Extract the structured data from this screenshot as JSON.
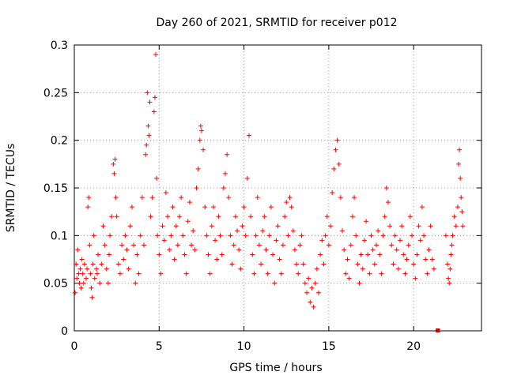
{
  "chart_data": {
    "type": "scatter",
    "title": "Day 260 of 2021, SRMTID for receiver p012",
    "xlabel": "GPS time / hours",
    "ylabel": "SRMTID / TECUs",
    "xlim": [
      0,
      24
    ],
    "ylim": [
      0,
      0.3
    ],
    "xticks": [
      "0",
      "5",
      "10",
      "15",
      "20"
    ],
    "xtick_values": [
      0,
      5,
      10,
      15,
      20
    ],
    "yticks": [
      "0",
      "0.05",
      "0.1",
      "0.15",
      "0.2",
      "0.25",
      "0.3"
    ],
    "ytick_values": [
      0,
      0.05,
      0.1,
      0.15,
      0.2,
      0.25,
      0.3
    ],
    "grid": true,
    "marker": "+",
    "series_color": "#ff0000",
    "gap_marker": {
      "x_start": 21.3,
      "x_end": 21.55,
      "y": 0.0,
      "color": "#cc0000"
    },
    "series": [
      {
        "name": "SRMTID",
        "points": [
          [
            0.05,
            0.04
          ],
          [
            0.1,
            0.07
          ],
          [
            0.15,
            0.055
          ],
          [
            0.2,
            0.085
          ],
          [
            0.25,
            0.06
          ],
          [
            0.3,
            0.05
          ],
          [
            0.35,
            0.065
          ],
          [
            0.4,
            0.045
          ],
          [
            0.45,
            0.075
          ],
          [
            0.5,
            0.06
          ],
          [
            0.55,
            0.05
          ],
          [
            0.6,
            0.07
          ],
          [
            0.7,
            0.055
          ],
          [
            0.75,
            0.065
          ],
          [
            0.8,
            0.13
          ],
          [
            0.85,
            0.14
          ],
          [
            0.9,
            0.09
          ],
          [
            0.95,
            0.06
          ],
          [
            1.0,
            0.045
          ],
          [
            1.05,
            0.035
          ],
          [
            1.1,
            0.07
          ],
          [
            1.15,
            0.1
          ],
          [
            1.2,
            0.055
          ],
          [
            1.3,
            0.065
          ],
          [
            1.35,
            0.06
          ],
          [
            1.4,
            0.08
          ],
          [
            1.5,
            0.05
          ],
          [
            1.6,
            0.07
          ],
          [
            1.7,
            0.11
          ],
          [
            1.8,
            0.09
          ],
          [
            1.9,
            0.065
          ],
          [
            2.0,
            0.05
          ],
          [
            2.05,
            0.08
          ],
          [
            2.1,
            0.1
          ],
          [
            2.2,
            0.12
          ],
          [
            2.3,
            0.175
          ],
          [
            2.35,
            0.165
          ],
          [
            2.4,
            0.18
          ],
          [
            2.45,
            0.14
          ],
          [
            2.5,
            0.12
          ],
          [
            2.6,
            0.07
          ],
          [
            2.7,
            0.06
          ],
          [
            2.8,
            0.09
          ],
          [
            2.9,
            0.075
          ],
          [
            3.0,
            0.1
          ],
          [
            3.1,
            0.085
          ],
          [
            3.2,
            0.065
          ],
          [
            3.3,
            0.11
          ],
          [
            3.4,
            0.13
          ],
          [
            3.5,
            0.09
          ],
          [
            3.6,
            0.05
          ],
          [
            3.7,
            0.08
          ],
          [
            3.8,
            0.06
          ],
          [
            3.9,
            0.1
          ],
          [
            4.0,
            0.14
          ],
          [
            4.1,
            0.09
          ],
          [
            4.2,
            0.185
          ],
          [
            4.25,
            0.195
          ],
          [
            4.3,
            0.25
          ],
          [
            4.35,
            0.215
          ],
          [
            4.4,
            0.205
          ],
          [
            4.45,
            0.24
          ],
          [
            4.5,
            0.12
          ],
          [
            4.6,
            0.14
          ],
          [
            4.7,
            0.23
          ],
          [
            4.75,
            0.245
          ],
          [
            4.8,
            0.29
          ],
          [
            4.85,
            0.16
          ],
          [
            4.9,
            0.1
          ],
          [
            5.0,
            0.08
          ],
          [
            5.1,
            0.06
          ],
          [
            5.2,
            0.11
          ],
          [
            5.3,
            0.095
          ],
          [
            5.4,
            0.145
          ],
          [
            5.5,
            0.12
          ],
          [
            5.6,
            0.085
          ],
          [
            5.7,
            0.1
          ],
          [
            5.8,
            0.13
          ],
          [
            5.9,
            0.075
          ],
          [
            6.0,
            0.11
          ],
          [
            6.1,
            0.09
          ],
          [
            6.2,
            0.12
          ],
          [
            6.3,
            0.14
          ],
          [
            6.4,
            0.1
          ],
          [
            6.5,
            0.08
          ],
          [
            6.6,
            0.06
          ],
          [
            6.7,
            0.115
          ],
          [
            6.8,
            0.135
          ],
          [
            6.9,
            0.09
          ],
          [
            7.0,
            0.105
          ],
          [
            7.1,
            0.085
          ],
          [
            7.2,
            0.15
          ],
          [
            7.3,
            0.17
          ],
          [
            7.4,
            0.2
          ],
          [
            7.45,
            0.215
          ],
          [
            7.5,
            0.21
          ],
          [
            7.6,
            0.19
          ],
          [
            7.7,
            0.13
          ],
          [
            7.8,
            0.1
          ],
          [
            7.9,
            0.08
          ],
          [
            8.0,
            0.06
          ],
          [
            8.1,
            0.11
          ],
          [
            8.2,
            0.13
          ],
          [
            8.3,
            0.095
          ],
          [
            8.4,
            0.075
          ],
          [
            8.5,
            0.12
          ],
          [
            8.6,
            0.1
          ],
          [
            8.7,
            0.08
          ],
          [
            8.8,
            0.15
          ],
          [
            8.9,
            0.165
          ],
          [
            9.0,
            0.185
          ],
          [
            9.1,
            0.14
          ],
          [
            9.2,
            0.1
          ],
          [
            9.3,
            0.07
          ],
          [
            9.4,
            0.09
          ],
          [
            9.5,
            0.12
          ],
          [
            9.6,
            0.105
          ],
          [
            9.7,
            0.085
          ],
          [
            9.8,
            0.065
          ],
          [
            9.9,
            0.11
          ],
          [
            10.0,
            0.13
          ],
          [
            10.1,
            0.1
          ],
          [
            10.2,
            0.16
          ],
          [
            10.3,
            0.205
          ],
          [
            10.4,
            0.12
          ],
          [
            10.5,
            0.08
          ],
          [
            10.6,
            0.06
          ],
          [
            10.7,
            0.1
          ],
          [
            10.8,
            0.14
          ],
          [
            10.9,
            0.09
          ],
          [
            11.0,
            0.07
          ],
          [
            11.1,
            0.105
          ],
          [
            11.2,
            0.12
          ],
          [
            11.3,
            0.085
          ],
          [
            11.4,
            0.06
          ],
          [
            11.5,
            0.1
          ],
          [
            11.6,
            0.13
          ],
          [
            11.7,
            0.08
          ],
          [
            11.8,
            0.05
          ],
          [
            11.9,
            0.095
          ],
          [
            12.0,
            0.11
          ],
          [
            12.1,
            0.075
          ],
          [
            12.2,
            0.06
          ],
          [
            12.3,
            0.09
          ],
          [
            12.4,
            0.12
          ],
          [
            12.5,
            0.135
          ],
          [
            12.6,
            0.1
          ],
          [
            12.7,
            0.14
          ],
          [
            12.8,
            0.13
          ],
          [
            12.9,
            0.105
          ],
          [
            13.0,
            0.085
          ],
          [
            13.1,
            0.07
          ],
          [
            13.2,
            0.06
          ],
          [
            13.3,
            0.09
          ],
          [
            13.4,
            0.1
          ],
          [
            13.5,
            0.07
          ],
          [
            13.6,
            0.05
          ],
          [
            13.7,
            0.04
          ],
          [
            13.8,
            0.055
          ],
          [
            13.9,
            0.03
          ],
          [
            14.0,
            0.045
          ],
          [
            14.1,
            0.025
          ],
          [
            14.2,
            0.05
          ],
          [
            14.3,
            0.065
          ],
          [
            14.4,
            0.04
          ],
          [
            14.5,
            0.08
          ],
          [
            14.6,
            0.095
          ],
          [
            14.7,
            0.07
          ],
          [
            14.8,
            0.1
          ],
          [
            14.9,
            0.12
          ],
          [
            15.0,
            0.09
          ],
          [
            15.1,
            0.11
          ],
          [
            15.2,
            0.145
          ],
          [
            15.3,
            0.17
          ],
          [
            15.4,
            0.19
          ],
          [
            15.5,
            0.2
          ],
          [
            15.6,
            0.175
          ],
          [
            15.7,
            0.14
          ],
          [
            15.8,
            0.105
          ],
          [
            15.9,
            0.085
          ],
          [
            16.0,
            0.06
          ],
          [
            16.1,
            0.075
          ],
          [
            16.2,
            0.055
          ],
          [
            16.3,
            0.09
          ],
          [
            16.4,
            0.12
          ],
          [
            16.5,
            0.14
          ],
          [
            16.6,
            0.1
          ],
          [
            16.7,
            0.07
          ],
          [
            16.8,
            0.05
          ],
          [
            16.9,
            0.08
          ],
          [
            17.0,
            0.065
          ],
          [
            17.1,
            0.095
          ],
          [
            17.2,
            0.115
          ],
          [
            17.3,
            0.08
          ],
          [
            17.4,
            0.06
          ],
          [
            17.5,
            0.1
          ],
          [
            17.6,
            0.085
          ],
          [
            17.7,
            0.07
          ],
          [
            17.8,
            0.09
          ],
          [
            17.9,
            0.105
          ],
          [
            18.0,
            0.08
          ],
          [
            18.1,
            0.06
          ],
          [
            18.2,
            0.1
          ],
          [
            18.3,
            0.12
          ],
          [
            18.4,
            0.15
          ],
          [
            18.5,
            0.135
          ],
          [
            18.6,
            0.11
          ],
          [
            18.7,
            0.09
          ],
          [
            18.8,
            0.07
          ],
          [
            18.9,
            0.1
          ],
          [
            19.0,
            0.085
          ],
          [
            19.1,
            0.065
          ],
          [
            19.2,
            0.095
          ],
          [
            19.3,
            0.11
          ],
          [
            19.4,
            0.08
          ],
          [
            19.5,
            0.06
          ],
          [
            19.6,
            0.075
          ],
          [
            19.7,
            0.09
          ],
          [
            19.8,
            0.12
          ],
          [
            19.9,
            0.1
          ],
          [
            20.0,
            0.07
          ],
          [
            20.1,
            0.055
          ],
          [
            20.2,
            0.08
          ],
          [
            20.3,
            0.11
          ],
          [
            20.4,
            0.095
          ],
          [
            20.5,
            0.13
          ],
          [
            20.6,
            0.1
          ],
          [
            20.7,
            0.075
          ],
          [
            20.8,
            0.06
          ],
          [
            20.9,
            0.085
          ],
          [
            21.0,
            0.11
          ],
          [
            21.1,
            0.075
          ],
          [
            21.2,
            0.065
          ],
          [
            21.9,
            0.1
          ],
          [
            22.0,
            0.07
          ],
          [
            22.05,
            0.055
          ],
          [
            22.1,
            0.05
          ],
          [
            22.15,
            0.065
          ],
          [
            22.2,
            0.08
          ],
          [
            22.25,
            0.09
          ],
          [
            22.3,
            0.1
          ],
          [
            22.4,
            0.12
          ],
          [
            22.5,
            0.11
          ],
          [
            22.6,
            0.13
          ],
          [
            22.65,
            0.175
          ],
          [
            22.7,
            0.19
          ],
          [
            22.75,
            0.16
          ],
          [
            22.8,
            0.14
          ],
          [
            22.85,
            0.125
          ],
          [
            22.9,
            0.11
          ]
        ]
      }
    ]
  }
}
